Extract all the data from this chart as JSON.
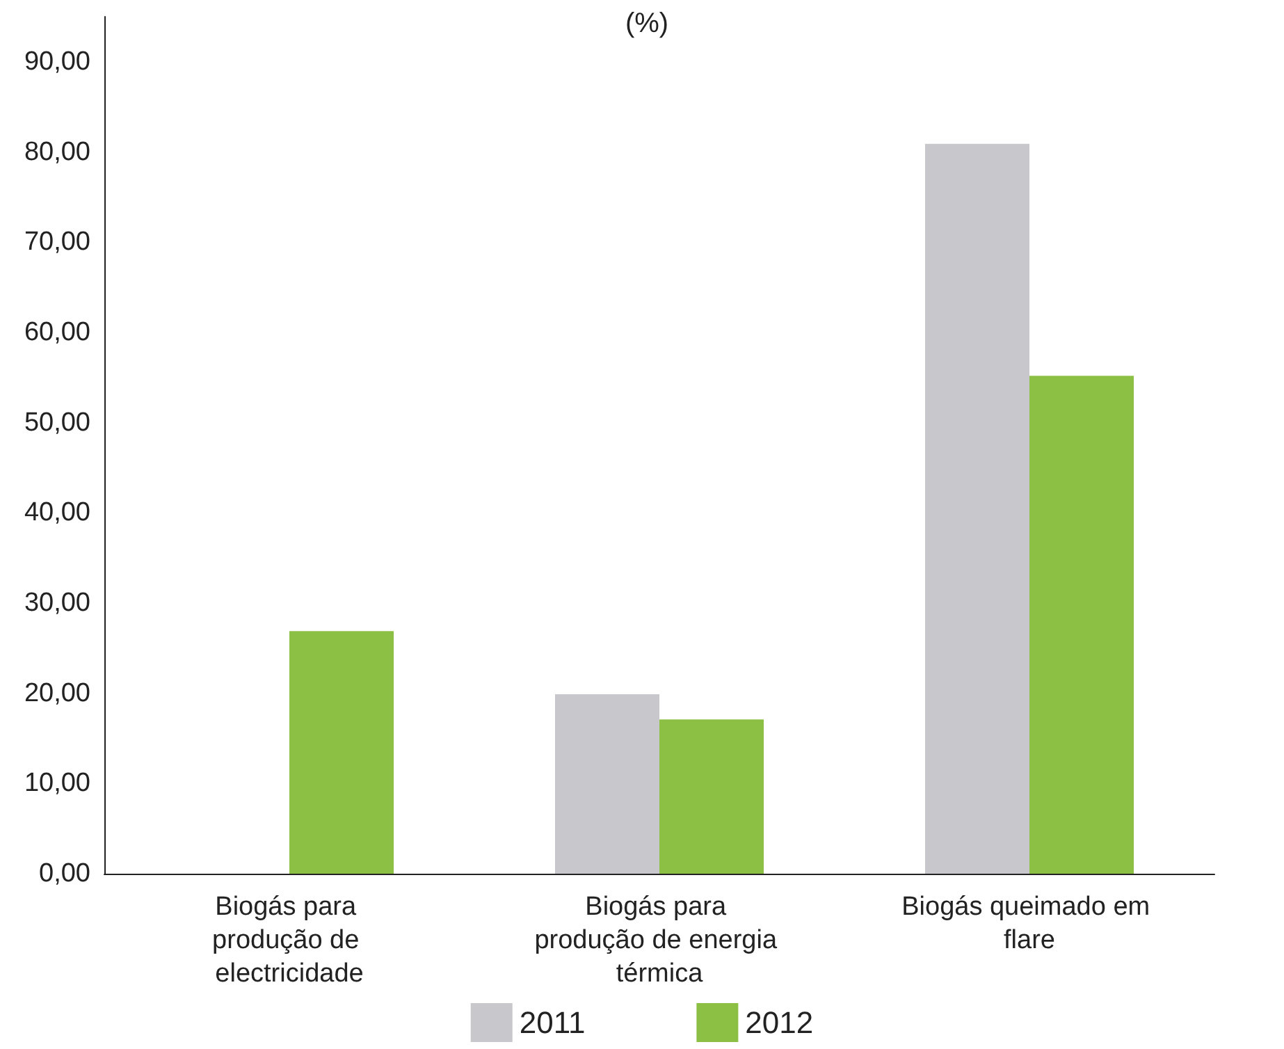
{
  "chart_data": {
    "type": "bar",
    "title": "(%)",
    "categories": [
      "Biogás para produção de electricidade",
      "Biogás para produção de energia térmica",
      "Biogás queimado em flare"
    ],
    "series": [
      {
        "name": "2011",
        "color": "#c8c8cc",
        "values": [
          0,
          19.9,
          80.9
        ]
      },
      {
        "name": "2012",
        "color": "#8cc045",
        "values": [
          26.9,
          17.1,
          55.2
        ]
      }
    ],
    "ylim": [
      0,
      95
    ],
    "yticks": [
      {
        "value": 0,
        "label": "0,00"
      },
      {
        "value": 10,
        "label": "10,00"
      },
      {
        "value": 20,
        "label": "20,00"
      },
      {
        "value": 30,
        "label": "30,00"
      },
      {
        "value": 40,
        "label": "40,00"
      },
      {
        "value": 50,
        "label": "50,00"
      },
      {
        "value": 60,
        "label": "60,00"
      },
      {
        "value": 70,
        "label": "70,00"
      },
      {
        "value": 80,
        "label": "80,00"
      },
      {
        "value": 90,
        "label": "90,00"
      }
    ],
    "grid": false,
    "legend": "bottom"
  }
}
